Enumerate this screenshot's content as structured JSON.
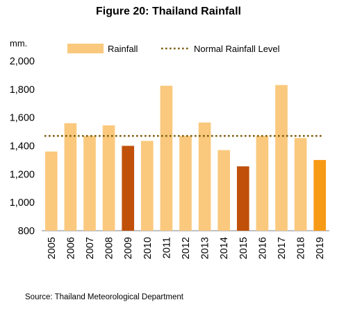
{
  "title": "Figure 20: Thailand Rainfall",
  "unit_label": "mm.",
  "source": "Source: Thailand Meteorological Department",
  "colors": {
    "rainfall": "#FAC97E",
    "low_year": "#C0500A",
    "latest_year": "#F79A16",
    "normal_line": "#7F5F10",
    "axis": "#808080"
  },
  "chart_data": {
    "type": "bar",
    "title": "Figure 20: Thailand Rainfall",
    "ylabel": "mm.",
    "xlabel": "",
    "categories": [
      "2005",
      "2006",
      "2007",
      "2008",
      "2009",
      "2010",
      "2011",
      "2012",
      "2013",
      "2014",
      "2015",
      "2016",
      "2017",
      "2018",
      "2019"
    ],
    "series": [
      {
        "name": "Rainfall",
        "values": [
          1360,
          1560,
          1470,
          1545,
          1400,
          1435,
          1825,
          1470,
          1565,
          1370,
          1255,
          1470,
          1830,
          1455,
          1300
        ],
        "highlight": {
          "2009": "low_year",
          "2015": "low_year",
          "2019": "latest_year"
        }
      },
      {
        "name": "Normal Rainfall Level",
        "type": "line",
        "style": "dotted",
        "value": 1470
      }
    ],
    "ylim": [
      800,
      2000
    ],
    "yticks": [
      "800",
      "1,000",
      "1,200",
      "1,400",
      "1,600",
      "1,800",
      "2,000"
    ],
    "ytick_values": [
      800,
      1000,
      1200,
      1400,
      1600,
      1800,
      2000
    ],
    "legend": {
      "placement": "top",
      "items": [
        "Rainfall",
        "Normal Rainfall Level"
      ]
    },
    "grid": false
  }
}
